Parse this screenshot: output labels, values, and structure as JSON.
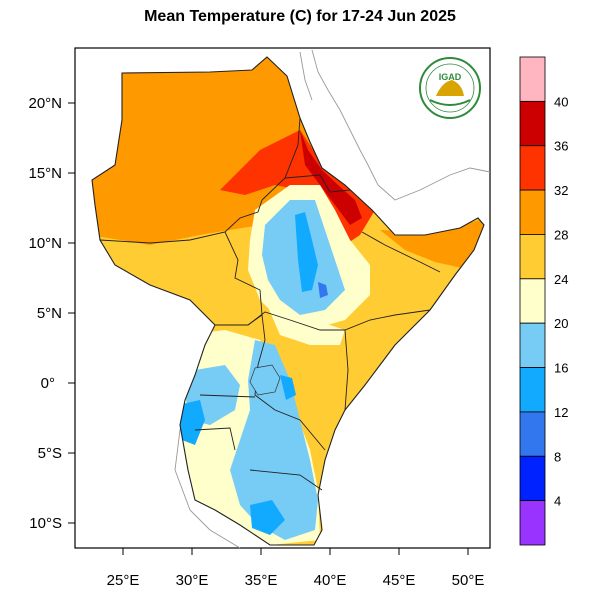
{
  "title": "Mean Temperature (C) for 17-24 Jun 2025",
  "logo": {
    "text": "IGAD",
    "icon": "igad-logo-icon",
    "color": "#2e8b3c"
  },
  "axes": {
    "lon_ticks": [
      "25°E",
      "30°E",
      "35°E",
      "40°E",
      "45°E",
      "50°E"
    ],
    "lat_ticks": [
      "20°N",
      "15°N",
      "10°N",
      "5°N",
      "0°",
      "5°S",
      "10°S"
    ]
  },
  "colorbar": {
    "labels": [
      "40",
      "36",
      "32",
      "28",
      "24",
      "20",
      "16",
      "12",
      "8",
      "4"
    ],
    "colors": [
      "#ffb6c1",
      "#cc0000",
      "#ff3300",
      "#ff9900",
      "#ffcc33",
      "#ffffcc",
      "#77ccf5",
      "#11aaff",
      "#3377ee",
      "#0022ff",
      "#9933ff"
    ]
  },
  "chart_data": {
    "type": "heatmap",
    "title": "Mean Temperature (C) for 17-24 Jun 2025",
    "xlim": [
      21.5,
      51.5
    ],
    "ylim": [
      -12,
      24
    ],
    "x_ticks": [
      25,
      30,
      35,
      40,
      45,
      50
    ],
    "y_ticks": [
      20,
      15,
      10,
      5,
      0,
      -5,
      -10
    ],
    "levels": [
      4,
      8,
      12,
      16,
      20,
      24,
      28,
      32,
      36,
      40
    ],
    "unit": "C"
  }
}
